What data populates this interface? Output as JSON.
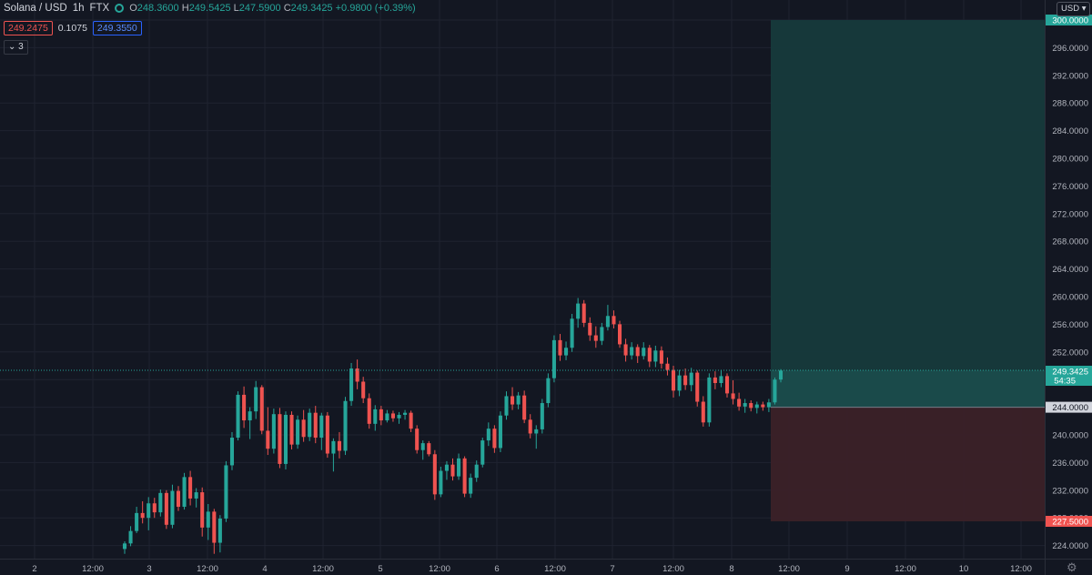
{
  "header": {
    "symbol": "Solana / USD",
    "interval": "1h",
    "exchange": "FTX",
    "open_key": "O",
    "open": "248.3600",
    "high_key": "H",
    "high": "249.5425",
    "low_key": "L",
    "low": "247.5900",
    "close_key": "C",
    "close": "249.3425",
    "change": "+0.9800 (+0.39%)",
    "sell_price": "249.2475",
    "spread": "0.1075",
    "buy_price": "249.3550",
    "indicators_count": "3",
    "currency": "USD"
  },
  "colors": {
    "background": "#131722",
    "up": "#26a69a",
    "down": "#ef5350",
    "grid": "#1f2330",
    "text": "#b2b5be",
    "profit_zone": "#163a3c",
    "loss_zone": "#3b2128"
  },
  "chart_data": {
    "type": "candlestick",
    "title": "Solana / USD · 1h · FTX",
    "ylim": [
      222,
      302
    ],
    "y_ticks": [
      "300.0000",
      "296.0000",
      "292.0000",
      "288.0000",
      "284.0000",
      "280.0000",
      "276.0000",
      "272.0000",
      "268.0000",
      "264.0000",
      "260.0000",
      "256.0000",
      "252.0000",
      "248.0000",
      "244.0000",
      "240.0000",
      "236.0000",
      "232.0000",
      "228.0000",
      "224.0000"
    ],
    "x_ticks": [
      "2",
      "12:00",
      "3",
      "12:00",
      "4",
      "12:00",
      "5",
      "12:00",
      "6",
      "12:00",
      "7",
      "12:00",
      "8",
      "12:00",
      "9",
      "12:00",
      "10",
      "12:00"
    ],
    "current_price": "249.3425",
    "countdown": "54:35",
    "position": {
      "type": "long",
      "entry": "244.0000",
      "target": "300.0000",
      "stop": "227.5000"
    },
    "candles": [
      [
        223.5,
        224.6,
        222.8,
        224.3
      ],
      [
        224.3,
        226.8,
        223.9,
        226.1
      ],
      [
        226.1,
        229.6,
        225.8,
        228.7
      ],
      [
        228.7,
        230.4,
        227.2,
        228.0
      ],
      [
        228.0,
        231.0,
        226.2,
        230.1
      ],
      [
        230.1,
        230.9,
        228.0,
        228.8
      ],
      [
        228.8,
        232.1,
        228.2,
        231.6
      ],
      [
        231.6,
        232.0,
        226.4,
        227.0
      ],
      [
        227.0,
        232.8,
        226.5,
        231.9
      ],
      [
        231.9,
        232.6,
        229.0,
        229.6
      ],
      [
        229.6,
        234.5,
        229.2,
        233.9
      ],
      [
        233.9,
        234.8,
        229.8,
        230.8
      ],
      [
        230.8,
        232.3,
        229.5,
        231.7
      ],
      [
        231.7,
        232.4,
        225.3,
        226.6
      ],
      [
        226.6,
        230.0,
        224.8,
        228.9
      ],
      [
        228.9,
        229.3,
        222.8,
        224.4
      ],
      [
        224.4,
        228.4,
        223.0,
        227.9
      ],
      [
        227.9,
        236.2,
        227.4,
        235.6
      ],
      [
        235.6,
        240.4,
        234.9,
        239.6
      ],
      [
        239.6,
        246.3,
        239.2,
        245.8
      ],
      [
        245.8,
        247.0,
        241.0,
        242.1
      ],
      [
        242.1,
        244.0,
        239.4,
        243.4
      ],
      [
        243.4,
        247.8,
        242.3,
        246.9
      ],
      [
        246.9,
        247.2,
        240.1,
        240.6
      ],
      [
        240.6,
        244.0,
        237.1,
        238.0
      ],
      [
        238.0,
        243.8,
        237.3,
        243.0
      ],
      [
        243.0,
        243.9,
        235.2,
        235.8
      ],
      [
        235.8,
        243.4,
        235.0,
        242.9
      ],
      [
        242.9,
        243.4,
        237.9,
        238.6
      ],
      [
        238.6,
        242.8,
        238.0,
        242.2
      ],
      [
        242.2,
        243.6,
        239.0,
        239.7
      ],
      [
        239.7,
        243.8,
        239.1,
        243.2
      ],
      [
        243.2,
        244.2,
        238.8,
        239.6
      ],
      [
        239.6,
        243.2,
        237.8,
        242.8
      ],
      [
        242.8,
        243.3,
        236.7,
        237.3
      ],
      [
        237.3,
        239.5,
        234.7,
        239.1
      ],
      [
        239.1,
        240.4,
        236.6,
        237.7
      ],
      [
        237.7,
        245.5,
        237.1,
        244.9
      ],
      [
        244.9,
        250.4,
        244.2,
        249.6
      ],
      [
        249.6,
        250.9,
        246.6,
        247.7
      ],
      [
        247.7,
        248.4,
        244.6,
        245.3
      ],
      [
        245.3,
        246.0,
        240.9,
        241.6
      ],
      [
        241.6,
        244.3,
        240.6,
        243.7
      ],
      [
        243.7,
        244.2,
        241.4,
        242.1
      ],
      [
        242.1,
        243.6,
        241.8,
        243.1
      ],
      [
        243.1,
        243.5,
        241.9,
        242.4
      ],
      [
        242.4,
        243.3,
        241.6,
        242.9
      ],
      [
        242.9,
        243.6,
        242.2,
        243.2
      ],
      [
        243.2,
        243.5,
        240.4,
        240.9
      ],
      [
        240.9,
        241.4,
        237.3,
        237.8
      ],
      [
        237.8,
        239.2,
        236.4,
        238.8
      ],
      [
        238.8,
        239.1,
        236.9,
        237.2
      ],
      [
        237.2,
        237.8,
        230.6,
        231.4
      ],
      [
        231.4,
        235.4,
        231.0,
        234.8
      ],
      [
        234.8,
        236.2,
        233.5,
        235.7
      ],
      [
        235.7,
        236.6,
        233.4,
        234.0
      ],
      [
        234.0,
        237.3,
        233.5,
        236.6
      ],
      [
        236.6,
        236.9,
        231.0,
        231.5
      ],
      [
        231.5,
        234.4,
        230.9,
        233.8
      ],
      [
        233.8,
        236.3,
        233.2,
        235.7
      ],
      [
        235.7,
        239.6,
        235.3,
        239.2
      ],
      [
        239.2,
        241.8,
        238.4,
        240.9
      ],
      [
        240.9,
        241.4,
        237.4,
        238.1
      ],
      [
        238.1,
        243.4,
        237.5,
        242.8
      ],
      [
        242.8,
        246.3,
        242.2,
        245.6
      ],
      [
        245.6,
        246.9,
        243.6,
        244.4
      ],
      [
        244.4,
        246.2,
        243.7,
        245.7
      ],
      [
        245.7,
        246.4,
        241.7,
        242.2
      ],
      [
        242.2,
        243.0,
        239.5,
        240.2
      ],
      [
        240.2,
        241.4,
        238.0,
        240.8
      ],
      [
        240.8,
        245.2,
        240.2,
        244.6
      ],
      [
        244.6,
        248.9,
        244.0,
        248.2
      ],
      [
        248.2,
        254.4,
        247.6,
        253.7
      ],
      [
        253.7,
        254.6,
        250.7,
        251.5
      ],
      [
        251.5,
        253.5,
        250.8,
        252.6
      ],
      [
        252.6,
        257.5,
        252.0,
        256.8
      ],
      [
        256.8,
        259.8,
        255.5,
        259.0
      ],
      [
        259.0,
        259.5,
        255.6,
        256.2
      ],
      [
        256.2,
        257.0,
        253.6,
        254.4
      ],
      [
        254.4,
        255.7,
        252.6,
        253.6
      ],
      [
        253.6,
        256.2,
        253.0,
        255.6
      ],
      [
        255.6,
        258.8,
        255.1,
        257.2
      ],
      [
        257.2,
        258.0,
        255.4,
        256.0
      ],
      [
        256.0,
        256.5,
        252.6,
        253.1
      ],
      [
        253.1,
        253.9,
        250.6,
        251.5
      ],
      [
        251.5,
        253.4,
        250.9,
        252.7
      ],
      [
        252.7,
        253.1,
        250.4,
        251.4
      ],
      [
        251.4,
        253.4,
        250.9,
        252.6
      ],
      [
        252.6,
        253.0,
        249.8,
        250.6
      ],
      [
        250.6,
        252.9,
        249.8,
        252.2
      ],
      [
        252.2,
        252.8,
        249.6,
        250.3
      ],
      [
        250.3,
        251.2,
        248.6,
        249.4
      ],
      [
        249.4,
        250.0,
        245.4,
        246.4
      ],
      [
        246.4,
        249.4,
        245.6,
        248.6
      ],
      [
        248.6,
        249.6,
        246.5,
        247.2
      ],
      [
        247.2,
        249.7,
        246.3,
        249.0
      ],
      [
        249.0,
        249.3,
        244.1,
        244.8
      ],
      [
        244.8,
        245.6,
        241.2,
        241.8
      ],
      [
        241.8,
        248.9,
        241.2,
        248.3
      ],
      [
        248.3,
        249.2,
        246.6,
        247.5
      ],
      [
        247.5,
        249.4,
        246.9,
        248.5
      ],
      [
        248.5,
        248.9,
        245.4,
        246.0
      ],
      [
        246.0,
        247.9,
        244.4,
        245.2
      ],
      [
        245.2,
        246.1,
        243.5,
        244.1
      ],
      [
        244.1,
        245.2,
        243.2,
        244.6
      ],
      [
        244.6,
        245.0,
        243.4,
        243.9
      ],
      [
        243.9,
        244.8,
        243.1,
        244.4
      ],
      [
        244.4,
        244.8,
        243.5,
        244.0
      ],
      [
        244.0,
        245.2,
        243.3,
        244.7
      ],
      [
        244.7,
        248.3,
        244.4,
        248.0
      ],
      [
        248.0,
        249.5,
        247.6,
        249.3
      ]
    ]
  }
}
